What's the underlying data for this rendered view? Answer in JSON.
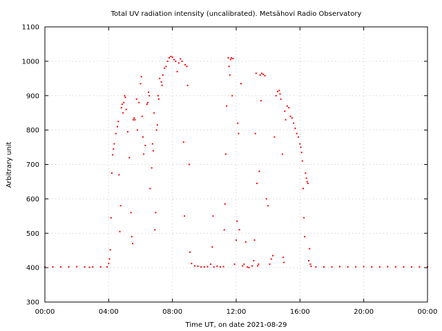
{
  "chart_data": {
    "type": "scatter",
    "title": "Total UV radiation intensity (uncalibrated). Metsähovi Radio Observatory",
    "xlabel": "Time UT, on date 2021-08-29",
    "ylabel": "Arbitrary unit",
    "x_unit": "hours UT",
    "xlim": [
      0,
      24
    ],
    "ylim": [
      300,
      1100
    ],
    "x_ticks": [
      0,
      4,
      8,
      12,
      16,
      20,
      24
    ],
    "x_tick_labels": [
      "00:00",
      "04:00",
      "08:00",
      "12:00",
      "16:00",
      "20:00",
      "00:00"
    ],
    "y_ticks": [
      300,
      400,
      500,
      600,
      700,
      800,
      900,
      1000,
      1100
    ],
    "y_tick_labels": [
      "300",
      "400",
      "500",
      "600",
      "700",
      "800",
      "900",
      "1000",
      "1100"
    ],
    "grid": true,
    "legend": "none",
    "series": [
      {
        "color": "#ff0000",
        "points": [
          [
            0.0,
            402
          ],
          [
            0.5,
            402
          ],
          [
            1.0,
            402
          ],
          [
            1.5,
            402
          ],
          [
            2.0,
            403
          ],
          [
            2.5,
            402
          ],
          [
            2.8,
            401
          ],
          [
            3.0,
            402
          ],
          [
            3.5,
            402
          ],
          [
            3.9,
            402
          ],
          [
            4.0,
            412
          ],
          [
            4.05,
            425
          ],
          [
            4.1,
            452
          ],
          [
            4.15,
            545
          ],
          [
            4.2,
            675
          ],
          [
            4.25,
            728
          ],
          [
            4.3,
            745
          ],
          [
            4.35,
            760
          ],
          [
            4.45,
            790
          ],
          [
            4.55,
            810
          ],
          [
            4.6,
            825
          ],
          [
            4.65,
            670
          ],
          [
            4.7,
            505
          ],
          [
            4.75,
            580
          ],
          [
            4.8,
            865
          ],
          [
            4.85,
            875
          ],
          [
            4.9,
            850
          ],
          [
            4.95,
            880
          ],
          [
            5.0,
            900
          ],
          [
            5.05,
            895
          ],
          [
            5.1,
            860
          ],
          [
            5.2,
            795
          ],
          [
            5.3,
            720
          ],
          [
            5.4,
            560
          ],
          [
            5.45,
            490
          ],
          [
            5.5,
            470
          ],
          [
            5.55,
            830
          ],
          [
            5.6,
            835
          ],
          [
            5.65,
            830
          ],
          [
            5.75,
            890
          ],
          [
            5.8,
            800
          ],
          [
            5.9,
            880
          ],
          [
            6.0,
            935
          ],
          [
            6.05,
            955
          ],
          [
            6.1,
            840
          ],
          [
            6.15,
            780
          ],
          [
            6.2,
            730
          ],
          [
            6.3,
            755
          ],
          [
            6.4,
            875
          ],
          [
            6.45,
            880
          ],
          [
            6.5,
            910
          ],
          [
            6.55,
            900
          ],
          [
            6.6,
            630
          ],
          [
            6.7,
            690
          ],
          [
            6.75,
            760
          ],
          [
            6.8,
            740
          ],
          [
            6.85,
            850
          ],
          [
            6.9,
            510
          ],
          [
            6.95,
            560
          ],
          [
            7.0,
            800
          ],
          [
            7.05,
            815
          ],
          [
            7.1,
            900
          ],
          [
            7.15,
            890
          ],
          [
            7.2,
            950
          ],
          [
            7.3,
            940
          ],
          [
            7.35,
            930
          ],
          [
            7.4,
            960
          ],
          [
            7.5,
            980
          ],
          [
            7.6,
            985
          ],
          [
            7.7,
            1000
          ],
          [
            7.8,
            1010
          ],
          [
            7.9,
            1014
          ],
          [
            8.0,
            1012
          ],
          [
            8.1,
            1005
          ],
          [
            8.2,
            1000
          ],
          [
            8.3,
            970
          ],
          [
            8.4,
            995
          ],
          [
            8.5,
            1007
          ],
          [
            8.6,
            1000
          ],
          [
            8.7,
            765
          ],
          [
            8.75,
            550
          ],
          [
            8.8,
            990
          ],
          [
            8.9,
            985
          ],
          [
            8.95,
            930
          ],
          [
            9.05,
            700
          ],
          [
            9.1,
            445
          ],
          [
            9.2,
            412
          ],
          [
            9.4,
            405
          ],
          [
            9.6,
            404
          ],
          [
            9.8,
            402
          ],
          [
            10.0,
            402
          ],
          [
            10.2,
            403
          ],
          [
            10.4,
            410
          ],
          [
            10.5,
            460
          ],
          [
            10.55,
            550
          ],
          [
            10.6,
            402
          ],
          [
            10.8,
            404
          ],
          [
            11.0,
            402
          ],
          [
            11.2,
            403
          ],
          [
            11.25,
            510
          ],
          [
            11.3,
            585
          ],
          [
            11.35,
            730
          ],
          [
            11.4,
            870
          ],
          [
            11.5,
            1010
          ],
          [
            11.55,
            985
          ],
          [
            11.6,
            960
          ],
          [
            11.65,
            1005
          ],
          [
            11.7,
            1010
          ],
          [
            11.75,
            900
          ],
          [
            11.8,
            1008
          ],
          [
            11.9,
            410
          ],
          [
            12.0,
            480
          ],
          [
            12.05,
            535
          ],
          [
            12.1,
            820
          ],
          [
            12.15,
            790
          ],
          [
            12.2,
            510
          ],
          [
            12.3,
            935
          ],
          [
            12.4,
            405
          ],
          [
            12.5,
            410
          ],
          [
            12.6,
            475
          ],
          [
            12.7,
            402
          ],
          [
            12.8,
            400
          ],
          [
            13.0,
            405
          ],
          [
            13.1,
            420
          ],
          [
            13.15,
            480
          ],
          [
            13.2,
            790
          ],
          [
            13.25,
            965
          ],
          [
            13.3,
            645
          ],
          [
            13.35,
            405
          ],
          [
            13.4,
            410
          ],
          [
            13.45,
            680
          ],
          [
            13.5,
            960
          ],
          [
            13.55,
            885
          ],
          [
            13.6,
            965
          ],
          [
            13.7,
            962
          ],
          [
            13.8,
            958
          ],
          [
            13.9,
            600
          ],
          [
            14.0,
            580
          ],
          [
            14.1,
            410
          ],
          [
            14.2,
            425
          ],
          [
            14.3,
            435
          ],
          [
            14.4,
            780
          ],
          [
            14.5,
            900
          ],
          [
            14.6,
            912
          ],
          [
            14.7,
            915
          ],
          [
            14.75,
            905
          ],
          [
            14.8,
            890
          ],
          [
            14.9,
            730
          ],
          [
            14.95,
            430
          ],
          [
            15.0,
            415
          ],
          [
            15.05,
            855
          ],
          [
            15.1,
            830
          ],
          [
            15.2,
            870
          ],
          [
            15.3,
            865
          ],
          [
            15.4,
            840
          ],
          [
            15.5,
            835
          ],
          [
            15.6,
            820
          ],
          [
            15.7,
            805
          ],
          [
            15.8,
            790
          ],
          [
            15.9,
            780
          ],
          [
            16.0,
            760
          ],
          [
            16.05,
            750
          ],
          [
            16.1,
            735
          ],
          [
            16.15,
            710
          ],
          [
            16.2,
            630
          ],
          [
            16.25,
            545
          ],
          [
            16.3,
            490
          ],
          [
            16.35,
            675
          ],
          [
            16.4,
            660
          ],
          [
            16.45,
            650
          ],
          [
            16.5,
            645
          ],
          [
            16.55,
            420
          ],
          [
            16.6,
            455
          ],
          [
            16.65,
            410
          ],
          [
            16.7,
            404
          ],
          [
            17.0,
            402
          ],
          [
            17.5,
            402
          ],
          [
            18.0,
            402
          ],
          [
            18.5,
            403
          ],
          [
            19.0,
            402
          ],
          [
            19.5,
            402
          ],
          [
            20.0,
            403
          ],
          [
            20.5,
            402
          ],
          [
            21.0,
            402
          ],
          [
            21.5,
            403
          ],
          [
            22.0,
            402
          ],
          [
            22.5,
            402
          ],
          [
            23.0,
            402
          ],
          [
            23.5,
            402
          ],
          [
            24.0,
            402
          ]
        ]
      }
    ]
  }
}
